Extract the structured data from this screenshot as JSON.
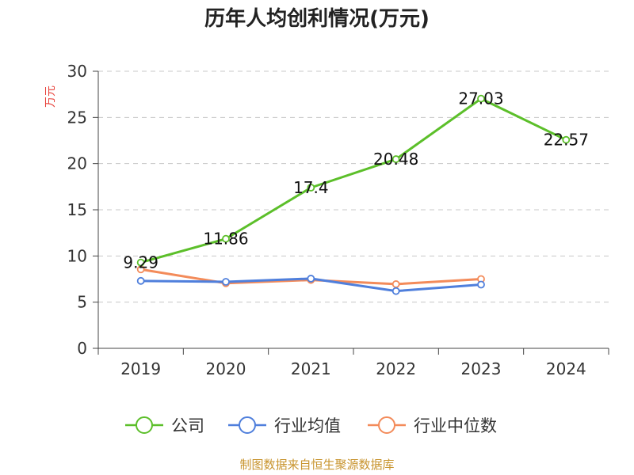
{
  "source_text": "制图数据来自恒生聚源数据库",
  "chart_data": {
    "type": "line",
    "title": "历年人均创利情况(万元)",
    "xlabel": "",
    "ylabel": "万元",
    "categories": [
      "2019",
      "2020",
      "2021",
      "2022",
      "2023",
      "2024"
    ],
    "ylim": [
      0,
      30
    ],
    "yticks": [
      0,
      5,
      10,
      15,
      20,
      25,
      30
    ],
    "grid": true,
    "legend_position": "bottom",
    "series": [
      {
        "name": "公司",
        "color": "#5cbf2a",
        "values": [
          9.29,
          11.86,
          17.4,
          20.48,
          27.03,
          22.57
        ],
        "show_labels": true
      },
      {
        "name": "行业均值",
        "color": "#4f7fdc",
        "values": [
          7.3,
          7.2,
          7.55,
          6.2,
          6.9,
          null
        ],
        "show_labels": false
      },
      {
        "name": "行业中位数",
        "color": "#f38b5a",
        "values": [
          8.55,
          7.05,
          7.4,
          6.95,
          7.5,
          null
        ],
        "show_labels": false
      }
    ]
  }
}
